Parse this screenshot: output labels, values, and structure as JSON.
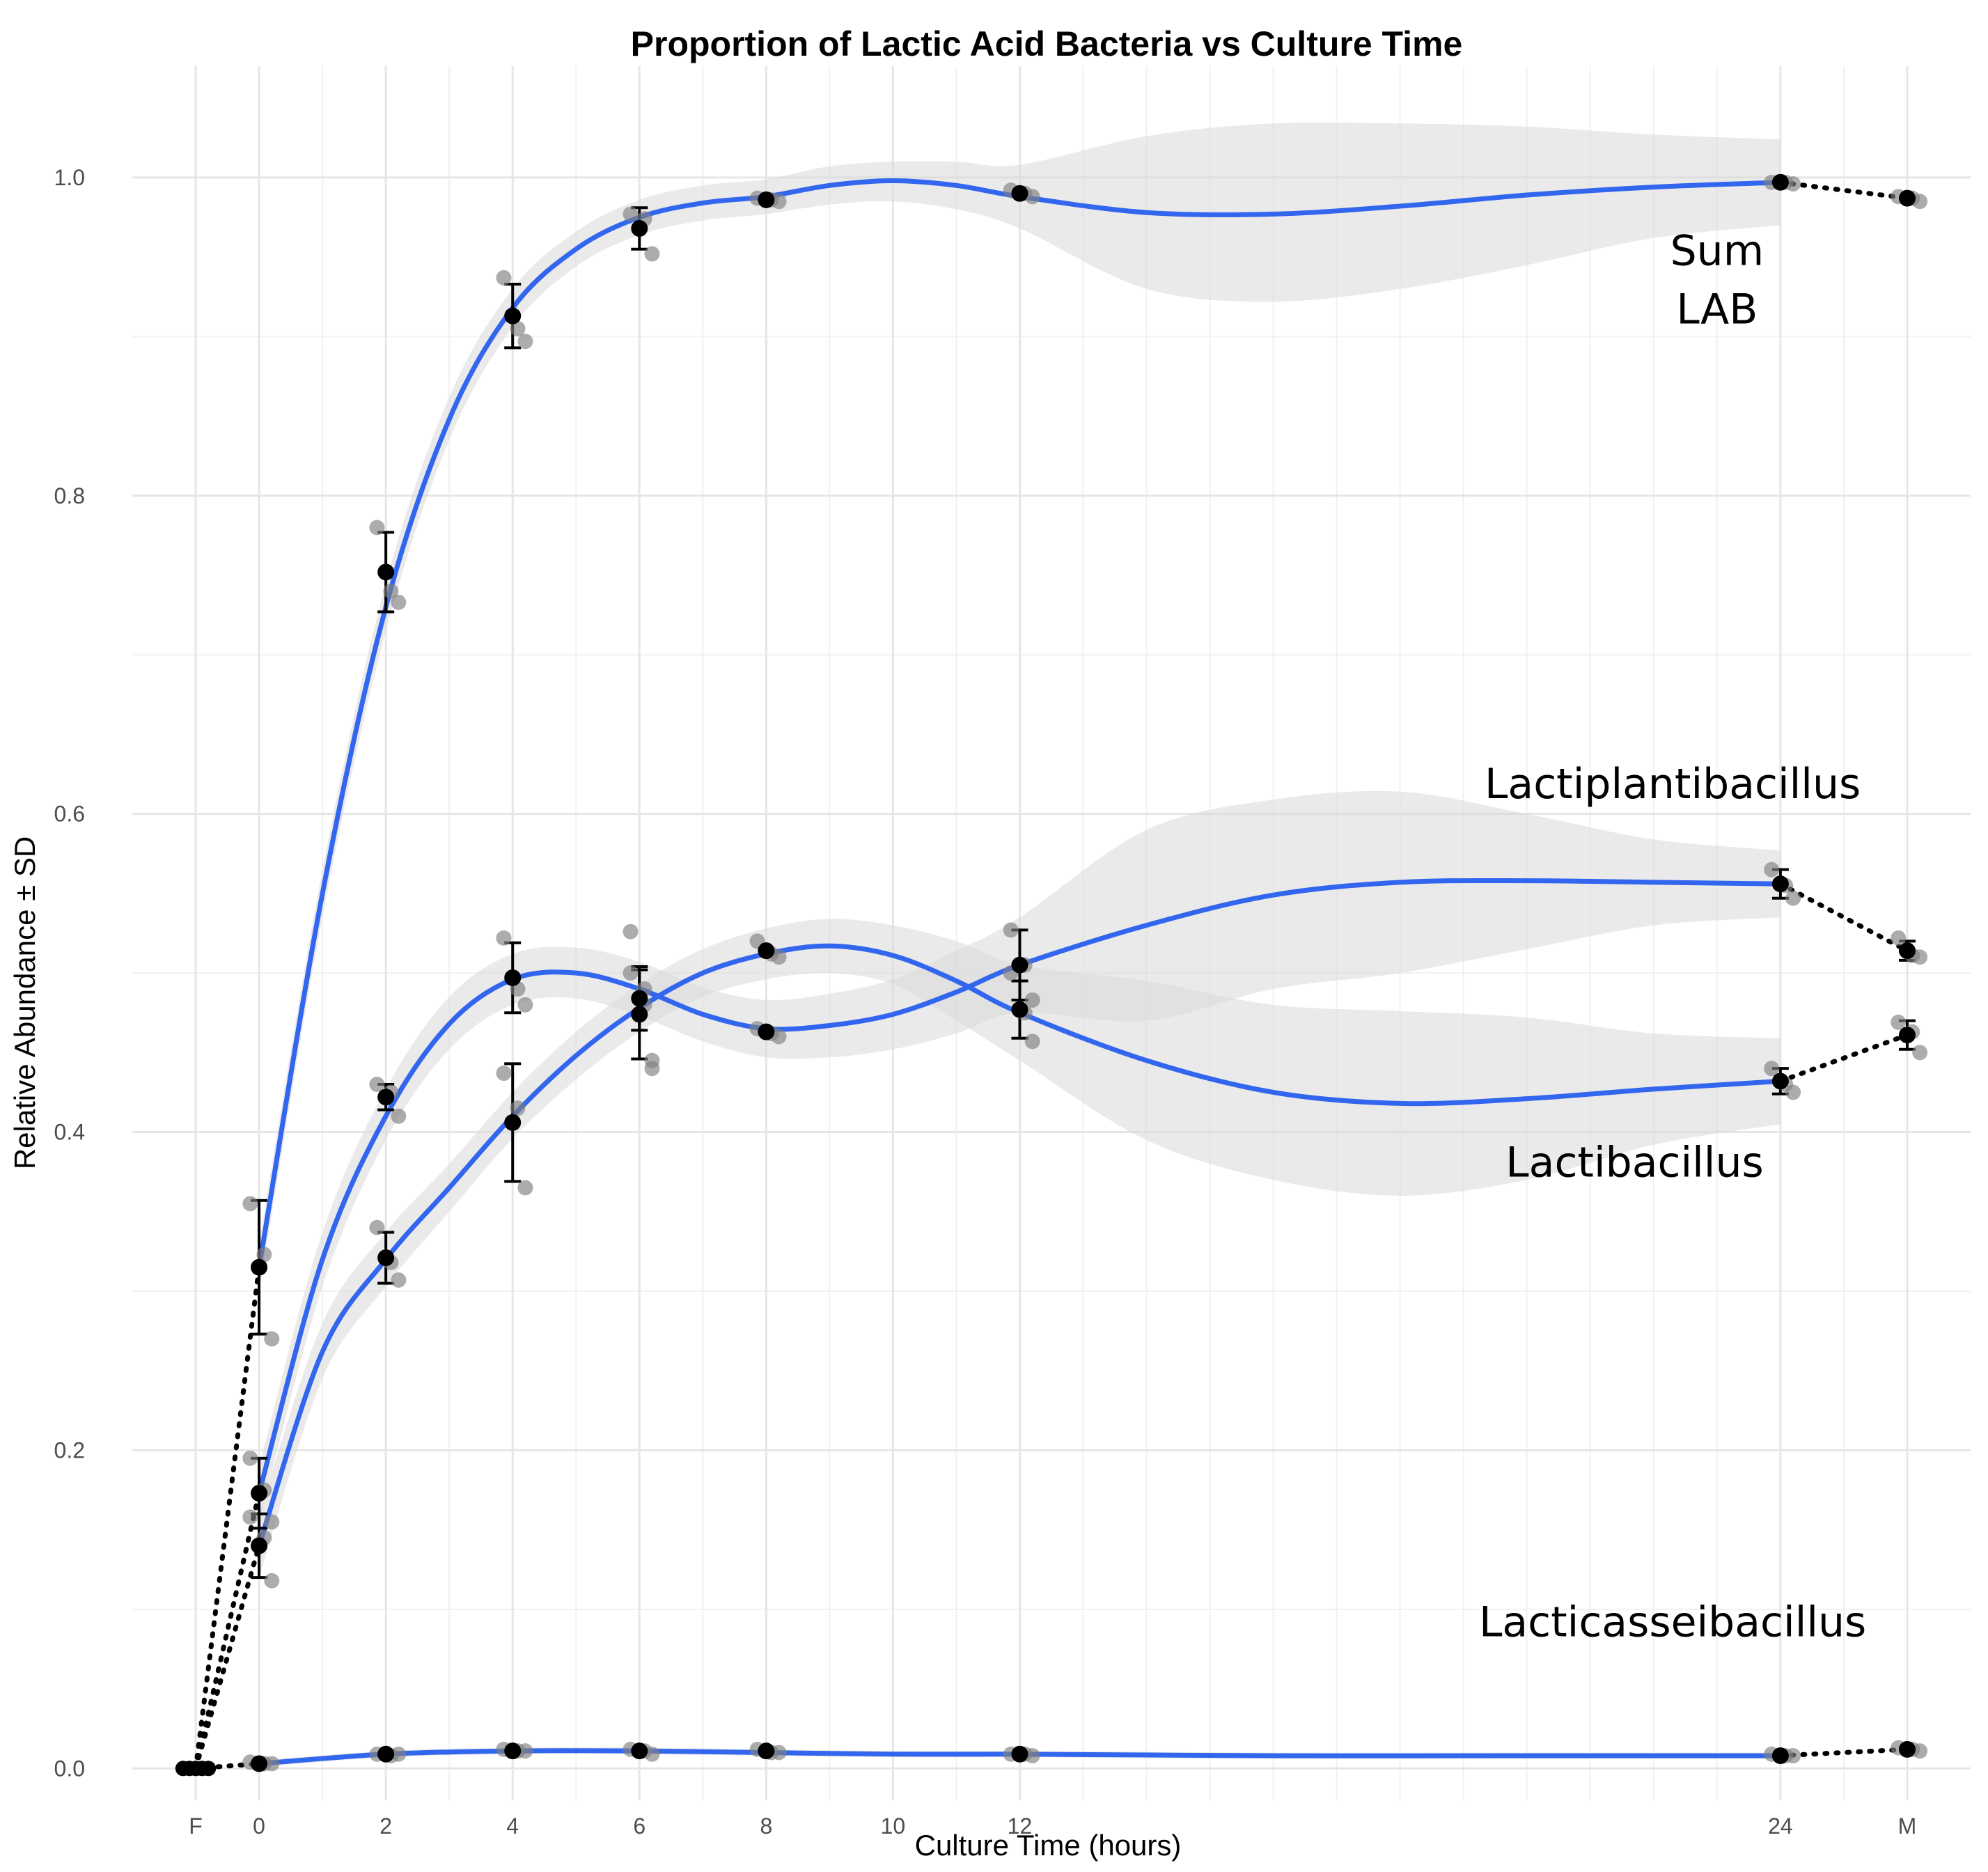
{
  "chart_data": {
    "type": "line",
    "title": "Proportion of Lactic Acid Bacteria vs Culture Time",
    "xlabel": "Culture Time (hours)",
    "ylabel": "Relative Abundance ± SD",
    "x_ticks": [
      {
        "label": "F",
        "value": -1
      },
      {
        "label": "0",
        "value": 0
      },
      {
        "label": "2",
        "value": 2
      },
      {
        "label": "4",
        "value": 4
      },
      {
        "label": "6",
        "value": 6
      },
      {
        "label": "8",
        "value": 8
      },
      {
        "label": "10",
        "value": 10
      },
      {
        "label": "12",
        "value": 12
      },
      {
        "label": "24",
        "value": 24
      },
      {
        "label": "M",
        "value": 26
      }
    ],
    "y_ticks": [
      {
        "label": "0.0",
        "value": 0.0
      },
      {
        "label": "0.2",
        "value": 0.2
      },
      {
        "label": "0.4",
        "value": 0.4
      },
      {
        "label": "0.6",
        "value": 0.6
      },
      {
        "label": "0.8",
        "value": 0.8
      },
      {
        "label": "1.0",
        "value": 1.0
      }
    ],
    "xlim": [
      -2,
      27
    ],
    "ylim": [
      -0.02,
      1.07
    ],
    "grid": true,
    "series": [
      {
        "name": "Sum LAB",
        "label_lines": [
          "Sum",
          "LAB"
        ],
        "label_at": {
          "x": 23,
          "y": 0.945
        },
        "label_anchor": "middle",
        "points": [
          {
            "x": 0,
            "mean": 0.315,
            "sd": 0.042,
            "reps": [
              0.355,
              0.323,
              0.27
            ]
          },
          {
            "x": 2,
            "mean": 0.752,
            "sd": 0.025,
            "reps": [
              0.78,
              0.74,
              0.733
            ]
          },
          {
            "x": 4,
            "mean": 0.913,
            "sd": 0.02,
            "reps": [
              0.937,
              0.905,
              0.897
            ]
          },
          {
            "x": 6,
            "mean": 0.968,
            "sd": 0.013,
            "reps": [
              0.977,
              0.974,
              0.952
            ]
          },
          {
            "x": 8,
            "mean": 0.986,
            "sd": 0.002,
            "reps": [
              0.987,
              0.986,
              0.985
            ]
          },
          {
            "x": 12,
            "mean": 0.99,
            "sd": 0.002,
            "reps": [
              0.992,
              0.99,
              0.988
            ]
          },
          {
            "x": 24,
            "mean": 0.997,
            "sd": 0.001,
            "reps": [
              0.997,
              0.997,
              0.996
            ]
          },
          {
            "x": 26,
            "mean": 0.987,
            "sd": 0.002,
            "reps": [
              0.988,
              0.987,
              0.985
            ]
          }
        ],
        "fit": [
          {
            "x": 0,
            "y": 0.315,
            "lo": 0.3,
            "hi": 0.33
          },
          {
            "x": 1,
            "y": 0.55,
            "lo": 0.535,
            "hi": 0.565
          },
          {
            "x": 2,
            "y": 0.73,
            "lo": 0.715,
            "hi": 0.745
          },
          {
            "x": 3,
            "y": 0.848,
            "lo": 0.835,
            "hi": 0.862
          },
          {
            "x": 4,
            "y": 0.918,
            "lo": 0.906,
            "hi": 0.93
          },
          {
            "x": 5,
            "y": 0.955,
            "lo": 0.944,
            "hi": 0.966
          },
          {
            "x": 6,
            "y": 0.975,
            "lo": 0.964,
            "hi": 0.986
          },
          {
            "x": 7,
            "y": 0.984,
            "lo": 0.973,
            "hi": 0.995
          },
          {
            "x": 8,
            "y": 0.988,
            "lo": 0.977,
            "hi": 0.999
          },
          {
            "x": 9,
            "y": 0.995,
            "lo": 0.983,
            "hi": 1.007
          },
          {
            "x": 10,
            "y": 0.998,
            "lo": 0.985,
            "hi": 1.01
          },
          {
            "x": 11,
            "y": 0.995,
            "lo": 0.98,
            "hi": 1.01
          },
          {
            "x": 12,
            "y": 0.988,
            "lo": 0.968,
            "hi": 1.008
          },
          {
            "x": 14,
            "y": 0.978,
            "lo": 0.93,
            "hi": 1.026
          },
          {
            "x": 16,
            "y": 0.977,
            "lo": 0.922,
            "hi": 1.034
          },
          {
            "x": 18,
            "y": 0.982,
            "lo": 0.93,
            "hi": 1.034
          },
          {
            "x": 20,
            "y": 0.989,
            "lo": 0.945,
            "hi": 1.032
          },
          {
            "x": 22,
            "y": 0.994,
            "lo": 0.962,
            "hi": 1.027
          },
          {
            "x": 24,
            "y": 0.997,
            "lo": 0.97,
            "hi": 1.024
          }
        ],
        "connectors": [
          {
            "from": [
              -1,
              0.0
            ],
            "to": [
              0,
              0.315
            ]
          },
          {
            "from": [
              24,
              0.997
            ],
            "to": [
              26,
              0.987
            ]
          }
        ]
      },
      {
        "name": "Lactiplantibacillus",
        "label_lines": [
          "Lactiplantibacillus"
        ],
        "label_at": {
          "x": 22.3,
          "y": 0.61
        },
        "label_anchor": "middle",
        "points": [
          {
            "x": 0,
            "mean": 0.14,
            "sd": 0.02,
            "reps": [
              0.158,
              0.145,
              0.118
            ]
          },
          {
            "x": 2,
            "mean": 0.321,
            "sd": 0.016,
            "reps": [
              0.34,
              0.318,
              0.307
            ]
          },
          {
            "x": 4,
            "mean": 0.406,
            "sd": 0.037,
            "reps": [
              0.437,
              0.415,
              0.365
            ]
          },
          {
            "x": 6,
            "mean": 0.474,
            "sd": 0.028,
            "reps": [
              0.5,
              0.48,
              0.44
            ]
          },
          {
            "x": 8,
            "mean": 0.514,
            "sd": 0.002,
            "reps": [
              0.52,
              0.512,
              0.51
            ]
          },
          {
            "x": 12,
            "mean": 0.505,
            "sd": 0.022,
            "reps": [
              0.527,
              0.505,
              0.483
            ]
          },
          {
            "x": 24,
            "mean": 0.556,
            "sd": 0.009,
            "reps": [
              0.565,
              0.555,
              0.547
            ]
          },
          {
            "x": 26,
            "mean": 0.514,
            "sd": 0.006,
            "reps": [
              0.522,
              0.511,
              0.51
            ]
          }
        ],
        "fit": [
          {
            "x": 0,
            "y": 0.14,
            "lo": 0.12,
            "hi": 0.16
          },
          {
            "x": 1,
            "y": 0.262,
            "lo": 0.245,
            "hi": 0.28
          },
          {
            "x": 2,
            "y": 0.32,
            "lo": 0.303,
            "hi": 0.337
          },
          {
            "x": 3,
            "y": 0.365,
            "lo": 0.35,
            "hi": 0.38
          },
          {
            "x": 4,
            "y": 0.41,
            "lo": 0.396,
            "hi": 0.425
          },
          {
            "x": 5,
            "y": 0.448,
            "lo": 0.433,
            "hi": 0.463
          },
          {
            "x": 6,
            "y": 0.478,
            "lo": 0.463,
            "hi": 0.493
          },
          {
            "x": 7,
            "y": 0.5,
            "lo": 0.485,
            "hi": 0.515
          },
          {
            "x": 8,
            "y": 0.512,
            "lo": 0.496,
            "hi": 0.528
          },
          {
            "x": 9,
            "y": 0.517,
            "lo": 0.5,
            "hi": 0.534
          },
          {
            "x": 10,
            "y": 0.511,
            "lo": 0.493,
            "hi": 0.53
          },
          {
            "x": 11,
            "y": 0.495,
            "lo": 0.47,
            "hi": 0.52
          },
          {
            "x": 12,
            "y": 0.475,
            "lo": 0.445,
            "hi": 0.505
          },
          {
            "x": 14,
            "y": 0.445,
            "lo": 0.395,
            "hi": 0.495
          },
          {
            "x": 16,
            "y": 0.425,
            "lo": 0.37,
            "hi": 0.48
          },
          {
            "x": 18,
            "y": 0.418,
            "lo": 0.36,
            "hi": 0.476
          },
          {
            "x": 20,
            "y": 0.421,
            "lo": 0.37,
            "hi": 0.472
          },
          {
            "x": 22,
            "y": 0.427,
            "lo": 0.392,
            "hi": 0.462
          },
          {
            "x": 24,
            "y": 0.432,
            "lo": 0.405,
            "hi": 0.459
          }
        ],
        "connectors": [
          {
            "from": [
              -1,
              0.0
            ],
            "to": [
              0,
              0.14
            ]
          },
          {
            "from": [
              24,
              0.556
            ],
            "to": [
              26,
              0.514
            ]
          }
        ]
      },
      {
        "name": "Lactibacillus",
        "label_lines": [
          "Lactibacillus"
        ],
        "label_at": {
          "x": 21.7,
          "y": 0.372
        },
        "label_anchor": "middle",
        "points": [
          {
            "x": 0,
            "mean": 0.173,
            "sd": 0.022,
            "reps": [
              0.195,
              0.175,
              0.155
            ]
          },
          {
            "x": 2,
            "mean": 0.422,
            "sd": 0.008,
            "reps": [
              0.43,
              0.425,
              0.41
            ]
          },
          {
            "x": 4,
            "mean": 0.497,
            "sd": 0.022,
            "reps": [
              0.522,
              0.49,
              0.48
            ]
          },
          {
            "x": 6,
            "mean": 0.484,
            "sd": 0.02,
            "reps": [
              0.526,
              0.49,
              0.445
            ]
          },
          {
            "x": 8,
            "mean": 0.463,
            "sd": 0.002,
            "reps": [
              0.465,
              0.462,
              0.46
            ]
          },
          {
            "x": 12,
            "mean": 0.477,
            "sd": 0.018,
            "reps": [
              0.5,
              0.475,
              0.457
            ]
          },
          {
            "x": 24,
            "mean": 0.432,
            "sd": 0.008,
            "reps": [
              0.44,
              0.43,
              0.425
            ]
          },
          {
            "x": 26,
            "mean": 0.461,
            "sd": 0.009,
            "reps": [
              0.469,
              0.463,
              0.45
            ]
          }
        ],
        "fit": [
          {
            "x": 0,
            "y": 0.173,
            "lo": 0.155,
            "hi": 0.19
          },
          {
            "x": 1,
            "y": 0.32,
            "lo": 0.303,
            "hi": 0.337
          },
          {
            "x": 2,
            "y": 0.41,
            "lo": 0.395,
            "hi": 0.427
          },
          {
            "x": 3,
            "y": 0.468,
            "lo": 0.452,
            "hi": 0.485
          },
          {
            "x": 4,
            "y": 0.496,
            "lo": 0.48,
            "hi": 0.512
          },
          {
            "x": 5,
            "y": 0.5,
            "lo": 0.484,
            "hi": 0.516
          },
          {
            "x": 6,
            "y": 0.49,
            "lo": 0.473,
            "hi": 0.507
          },
          {
            "x": 7,
            "y": 0.474,
            "lo": 0.457,
            "hi": 0.491
          },
          {
            "x": 8,
            "y": 0.465,
            "lo": 0.447,
            "hi": 0.483
          },
          {
            "x": 9,
            "y": 0.467,
            "lo": 0.447,
            "hi": 0.487
          },
          {
            "x": 10,
            "y": 0.474,
            "lo": 0.452,
            "hi": 0.496
          },
          {
            "x": 11,
            "y": 0.488,
            "lo": 0.462,
            "hi": 0.514
          },
          {
            "x": 12,
            "y": 0.505,
            "lo": 0.475,
            "hi": 0.535
          },
          {
            "x": 14,
            "y": 0.53,
            "lo": 0.47,
            "hi": 0.59
          },
          {
            "x": 16,
            "y": 0.549,
            "lo": 0.49,
            "hi": 0.609
          },
          {
            "x": 18,
            "y": 0.557,
            "lo": 0.5,
            "hi": 0.614
          },
          {
            "x": 20,
            "y": 0.558,
            "lo": 0.515,
            "hi": 0.6
          },
          {
            "x": 22,
            "y": 0.557,
            "lo": 0.53,
            "hi": 0.584
          },
          {
            "x": 24,
            "y": 0.556,
            "lo": 0.535,
            "hi": 0.577
          }
        ],
        "connectors": [
          {
            "from": [
              -1,
              0.0
            ],
            "to": [
              0,
              0.173
            ]
          },
          {
            "from": [
              24,
              0.432
            ],
            "to": [
              26,
              0.461
            ]
          }
        ]
      },
      {
        "name": "Lacticasseibacillus",
        "label_lines": [
          "Lacticasseibacillus"
        ],
        "label_at": {
          "x": 22.3,
          "y": 0.083
        },
        "label_anchor": "middle",
        "points": [
          {
            "x": 0,
            "mean": 0.003,
            "sd": 0.001,
            "reps": [
              0.004,
              0.003,
              0.003
            ]
          },
          {
            "x": 2,
            "mean": 0.009,
            "sd": 0.001,
            "reps": [
              0.009,
              0.008,
              0.009
            ]
          },
          {
            "x": 4,
            "mean": 0.011,
            "sd": 0.001,
            "reps": [
              0.012,
              0.011,
              0.011
            ]
          },
          {
            "x": 6,
            "mean": 0.011,
            "sd": 0.001,
            "reps": [
              0.012,
              0.011,
              0.009
            ]
          },
          {
            "x": 8,
            "mean": 0.011,
            "sd": 0.001,
            "reps": [
              0.012,
              0.01,
              0.01
            ]
          },
          {
            "x": 12,
            "mean": 0.009,
            "sd": 0.001,
            "reps": [
              0.009,
              0.009,
              0.008
            ]
          },
          {
            "x": 24,
            "mean": 0.008,
            "sd": 0.001,
            "reps": [
              0.009,
              0.008,
              0.008
            ]
          },
          {
            "x": 26,
            "mean": 0.012,
            "sd": 0.001,
            "reps": [
              0.013,
              0.012,
              0.011
            ]
          }
        ],
        "fit": [
          {
            "x": 0,
            "y": 0.003,
            "lo": 0.001,
            "hi": 0.005
          },
          {
            "x": 2,
            "y": 0.009,
            "lo": 0.007,
            "hi": 0.011
          },
          {
            "x": 4,
            "y": 0.011,
            "lo": 0.009,
            "hi": 0.013
          },
          {
            "x": 6,
            "y": 0.011,
            "lo": 0.009,
            "hi": 0.013
          },
          {
            "x": 8,
            "y": 0.01,
            "lo": 0.008,
            "hi": 0.012
          },
          {
            "x": 10,
            "y": 0.009,
            "lo": 0.007,
            "hi": 0.011
          },
          {
            "x": 12,
            "y": 0.009,
            "lo": 0.007,
            "hi": 0.011
          },
          {
            "x": 16,
            "y": 0.008,
            "lo": 0.006,
            "hi": 0.01
          },
          {
            "x": 20,
            "y": 0.008,
            "lo": 0.006,
            "hi": 0.01
          },
          {
            "x": 24,
            "y": 0.008,
            "lo": 0.006,
            "hi": 0.01
          }
        ],
        "connectors": [
          {
            "from": [
              -1,
              0.0
            ],
            "to": [
              0,
              0.003
            ]
          },
          {
            "from": [
              24,
              0.008
            ],
            "to": [
              26,
              0.012
            ]
          }
        ]
      }
    ],
    "baseline_F": [
      0.0,
      0.0,
      0.0,
      0.0,
      0.0
    ]
  }
}
